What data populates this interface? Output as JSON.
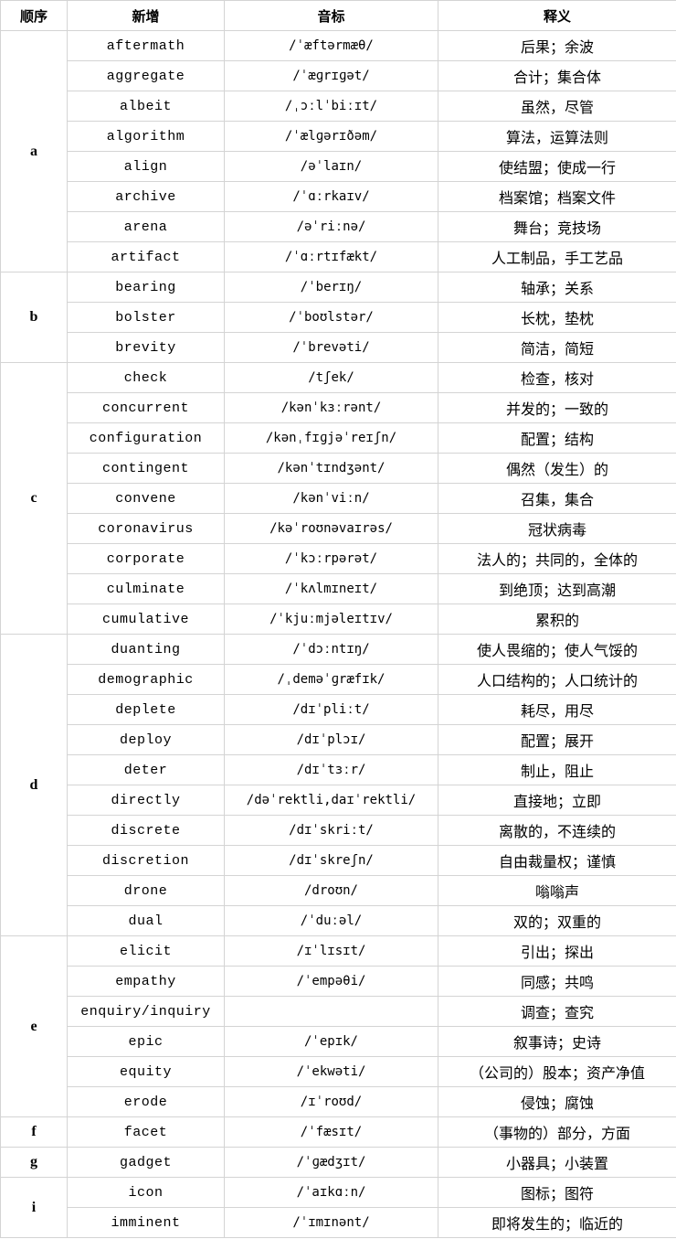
{
  "header": {
    "order": "顺序",
    "word": "新增",
    "ipa": "音标",
    "meaning": "释义"
  },
  "groups": [
    {
      "letter": "a",
      "words": [
        {
          "word": "aftermath",
          "ipa": "/ˈæftərmæθ/",
          "meaning": "后果；余波"
        },
        {
          "word": "aggregate",
          "ipa": "/ˈæɡrɪɡət/",
          "meaning": "合计；集合体"
        },
        {
          "word": "albeit",
          "ipa": "/ˌɔːlˈbiːɪt/",
          "meaning": "虽然，尽管"
        },
        {
          "word": "algorithm",
          "ipa": "/ˈælɡərɪðəm/",
          "meaning": "算法，运算法则"
        },
        {
          "word": "align",
          "ipa": "/əˈlaɪn/",
          "meaning": "使结盟；使成一行"
        },
        {
          "word": "archive",
          "ipa": "/ˈɑːrkaɪv/",
          "meaning": "档案馆；档案文件"
        },
        {
          "word": "arena",
          "ipa": "/əˈriːnə/",
          "meaning": "舞台；竞技场"
        },
        {
          "word": "artifact",
          "ipa": "/ˈɑːrtɪfækt/",
          "meaning": "人工制品，手工艺品"
        }
      ]
    },
    {
      "letter": "b",
      "words": [
        {
          "word": "bearing",
          "ipa": "/ˈberɪŋ/",
          "meaning": "轴承；关系"
        },
        {
          "word": "bolster",
          "ipa": "/ˈboʊlstər/",
          "meaning": "长枕，垫枕"
        },
        {
          "word": "brevity",
          "ipa": "/ˈbrevəti/",
          "meaning": "简洁，简短"
        }
      ]
    },
    {
      "letter": "c",
      "words": [
        {
          "word": "check",
          "ipa": "/tʃek/",
          "meaning": "检查，核对"
        },
        {
          "word": "concurrent",
          "ipa": "/kənˈkɜːrənt/",
          "meaning": "并发的；一致的"
        },
        {
          "word": "configuration",
          "ipa": "/kənˌfɪɡjəˈreɪʃn/",
          "meaning": "配置；结构"
        },
        {
          "word": "contingent",
          "ipa": "/kənˈtɪndʒənt/",
          "meaning": "偶然（发生）的"
        },
        {
          "word": "convene",
          "ipa": "/kənˈviːn/",
          "meaning": "召集，集合"
        },
        {
          "word": "coronavirus",
          "ipa": "/kəˈroʊnəvaɪrəs/",
          "meaning": "冠状病毒"
        },
        {
          "word": "corporate",
          "ipa": "/ˈkɔːrpərət/",
          "meaning": "法人的；共同的，全体的"
        },
        {
          "word": "culminate",
          "ipa": "/ˈkʌlmɪneɪt/",
          "meaning": "到绝顶；达到高潮"
        },
        {
          "word": "cumulative",
          "ipa": "/ˈkjuːmjəleɪtɪv/",
          "meaning": "累积的"
        }
      ]
    },
    {
      "letter": "d",
      "words": [
        {
          "word": "duanting",
          "ipa": "/ˈdɔːntɪŋ/",
          "meaning": "使人畏缩的；使人气馁的"
        },
        {
          "word": "demographic",
          "ipa": "/ˌdeməˈɡræfɪk/",
          "meaning": "人口结构的；人口统计的"
        },
        {
          "word": "deplete",
          "ipa": "/dɪˈpliːt/",
          "meaning": "耗尽，用尽"
        },
        {
          "word": "deploy",
          "ipa": "/dɪˈplɔɪ/",
          "meaning": "配置；展开"
        },
        {
          "word": "deter",
          "ipa": "/dɪˈtɜːr/",
          "meaning": "制止，阻止"
        },
        {
          "word": "directly",
          "ipa": "/dəˈrektli,daɪˈrektli/",
          "meaning": "直接地；立即"
        },
        {
          "word": "discrete",
          "ipa": "/dɪˈskriːt/",
          "meaning": "离散的，不连续的"
        },
        {
          "word": "discretion",
          "ipa": "/dɪˈskreʃn/",
          "meaning": "自由裁量权；谨慎"
        },
        {
          "word": "drone",
          "ipa": "/droʊn/",
          "meaning": "嗡嗡声"
        },
        {
          "word": "dual",
          "ipa": "/ˈduːəl/",
          "meaning": "双的；双重的"
        }
      ]
    },
    {
      "letter": "e",
      "words": [
        {
          "word": "elicit",
          "ipa": "/ɪˈlɪsɪt/",
          "meaning": "引出；探出"
        },
        {
          "word": "empathy",
          "ipa": "/ˈempəθi/",
          "meaning": "同感；共鸣"
        },
        {
          "word": "enquiry/inquiry",
          "ipa": "",
          "meaning": "调查；查究"
        },
        {
          "word": "epic",
          "ipa": "/ˈepɪk/",
          "meaning": "叙事诗；史诗"
        },
        {
          "word": "equity",
          "ipa": "/ˈekwəti/",
          "meaning": "（公司的）股本；资产净值"
        },
        {
          "word": "erode",
          "ipa": "/ɪˈroʊd/",
          "meaning": "侵蚀；腐蚀"
        }
      ]
    },
    {
      "letter": "f",
      "words": [
        {
          "word": "facet",
          "ipa": "/ˈfæsɪt/",
          "meaning": "（事物的）部分，方面"
        }
      ]
    },
    {
      "letter": "g",
      "words": [
        {
          "word": "gadget",
          "ipa": "/ˈɡædʒɪt/",
          "meaning": "小器具；小装置"
        }
      ]
    },
    {
      "letter": "i",
      "words": [
        {
          "word": "icon",
          "ipa": "/ˈaɪkɑːn/",
          "meaning": "图标；图符"
        },
        {
          "word": "imminent",
          "ipa": "/ˈɪmɪnənt/",
          "meaning": "即将发生的；临近的"
        }
      ]
    }
  ]
}
